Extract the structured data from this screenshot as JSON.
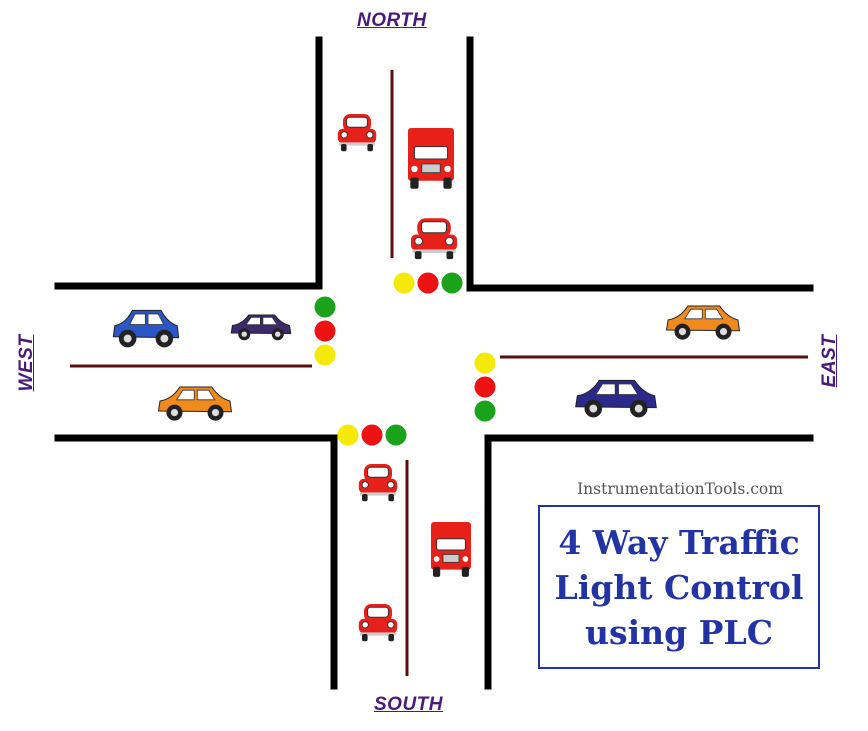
{
  "labels": {
    "north": "NORTH",
    "south": "SOUTH",
    "west": "WEST",
    "east": "EAST"
  },
  "site": "InstrumentationTools.com",
  "title_lines": [
    "4 Way Traffic",
    "Light Control",
    "using PLC"
  ],
  "colors": {
    "road_edge": "#000000",
    "lane_divider": "#5a0f0f",
    "light_red": "#ee1111",
    "light_yellow": "#f5e90a",
    "light_green": "#1aa31a",
    "label": "#4a1a7a",
    "title": "#2233a3",
    "truck": "#e8201a",
    "car_red": "#e8201a",
    "car_orange": "#f08a1c",
    "car_blue": "#2a56c8",
    "car_navy": "#2b2a8c",
    "car_purple": "#3b2a6e"
  },
  "traffic_lights": [
    {
      "approach": "north",
      "order": [
        "yellow",
        "red",
        "green"
      ]
    },
    {
      "approach": "west",
      "order": [
        "green",
        "red",
        "yellow"
      ]
    },
    {
      "approach": "east",
      "order": [
        "yellow",
        "red",
        "green"
      ]
    },
    {
      "approach": "south",
      "order": [
        "yellow",
        "red",
        "green"
      ]
    }
  ],
  "vehicles": [
    {
      "id": "north-car-1",
      "kind": "car",
      "color": "car_red",
      "view": "front"
    },
    {
      "id": "north-truck",
      "kind": "truck",
      "color": "truck",
      "view": "front"
    },
    {
      "id": "north-car-2",
      "kind": "car",
      "color": "car_red",
      "view": "front"
    },
    {
      "id": "west-car-blue",
      "kind": "car",
      "color": "car_blue",
      "view": "side"
    },
    {
      "id": "west-car-purple",
      "kind": "car",
      "color": "car_purple",
      "view": "side"
    },
    {
      "id": "west-car-orange",
      "kind": "car",
      "color": "car_orange",
      "view": "side"
    },
    {
      "id": "east-car-orange",
      "kind": "car",
      "color": "car_orange",
      "view": "side"
    },
    {
      "id": "east-car-navy",
      "kind": "car",
      "color": "car_navy",
      "view": "side"
    },
    {
      "id": "south-car-1",
      "kind": "car",
      "color": "car_red",
      "view": "front"
    },
    {
      "id": "south-truck",
      "kind": "truck",
      "color": "truck",
      "view": "front"
    },
    {
      "id": "south-car-2",
      "kind": "car",
      "color": "car_red",
      "view": "front"
    }
  ]
}
